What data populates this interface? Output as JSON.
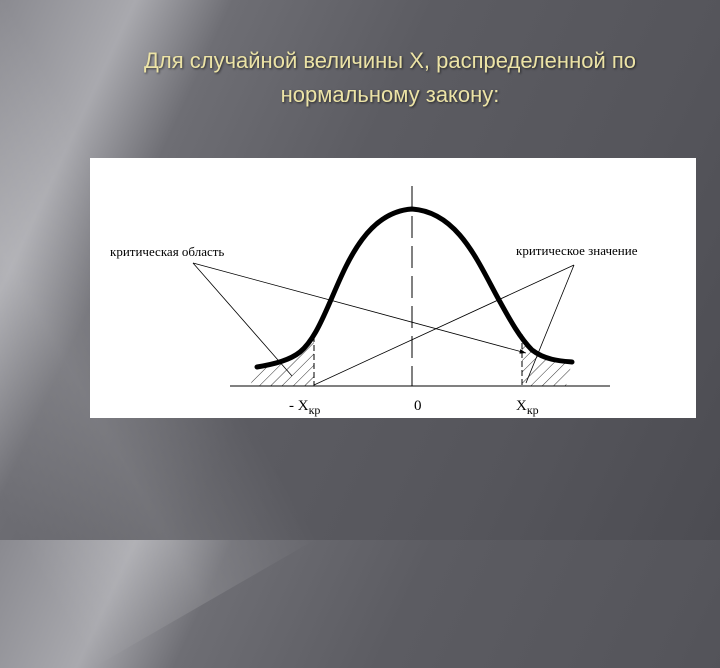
{
  "slide": {
    "title_line1": "Для случайной величины X, распределенной по",
    "title_line2": "нормальному закону:"
  },
  "diagram": {
    "label_critical_region": "критическая область",
    "label_critical_value": "критическое значение",
    "tick_neg": "- X",
    "tick_neg_sub": "кр",
    "tick_zero": "0",
    "tick_pos": "X",
    "tick_pos_sub": "кр"
  },
  "colors": {
    "title": "#ece3a6",
    "figure_background": "#ffffff"
  }
}
